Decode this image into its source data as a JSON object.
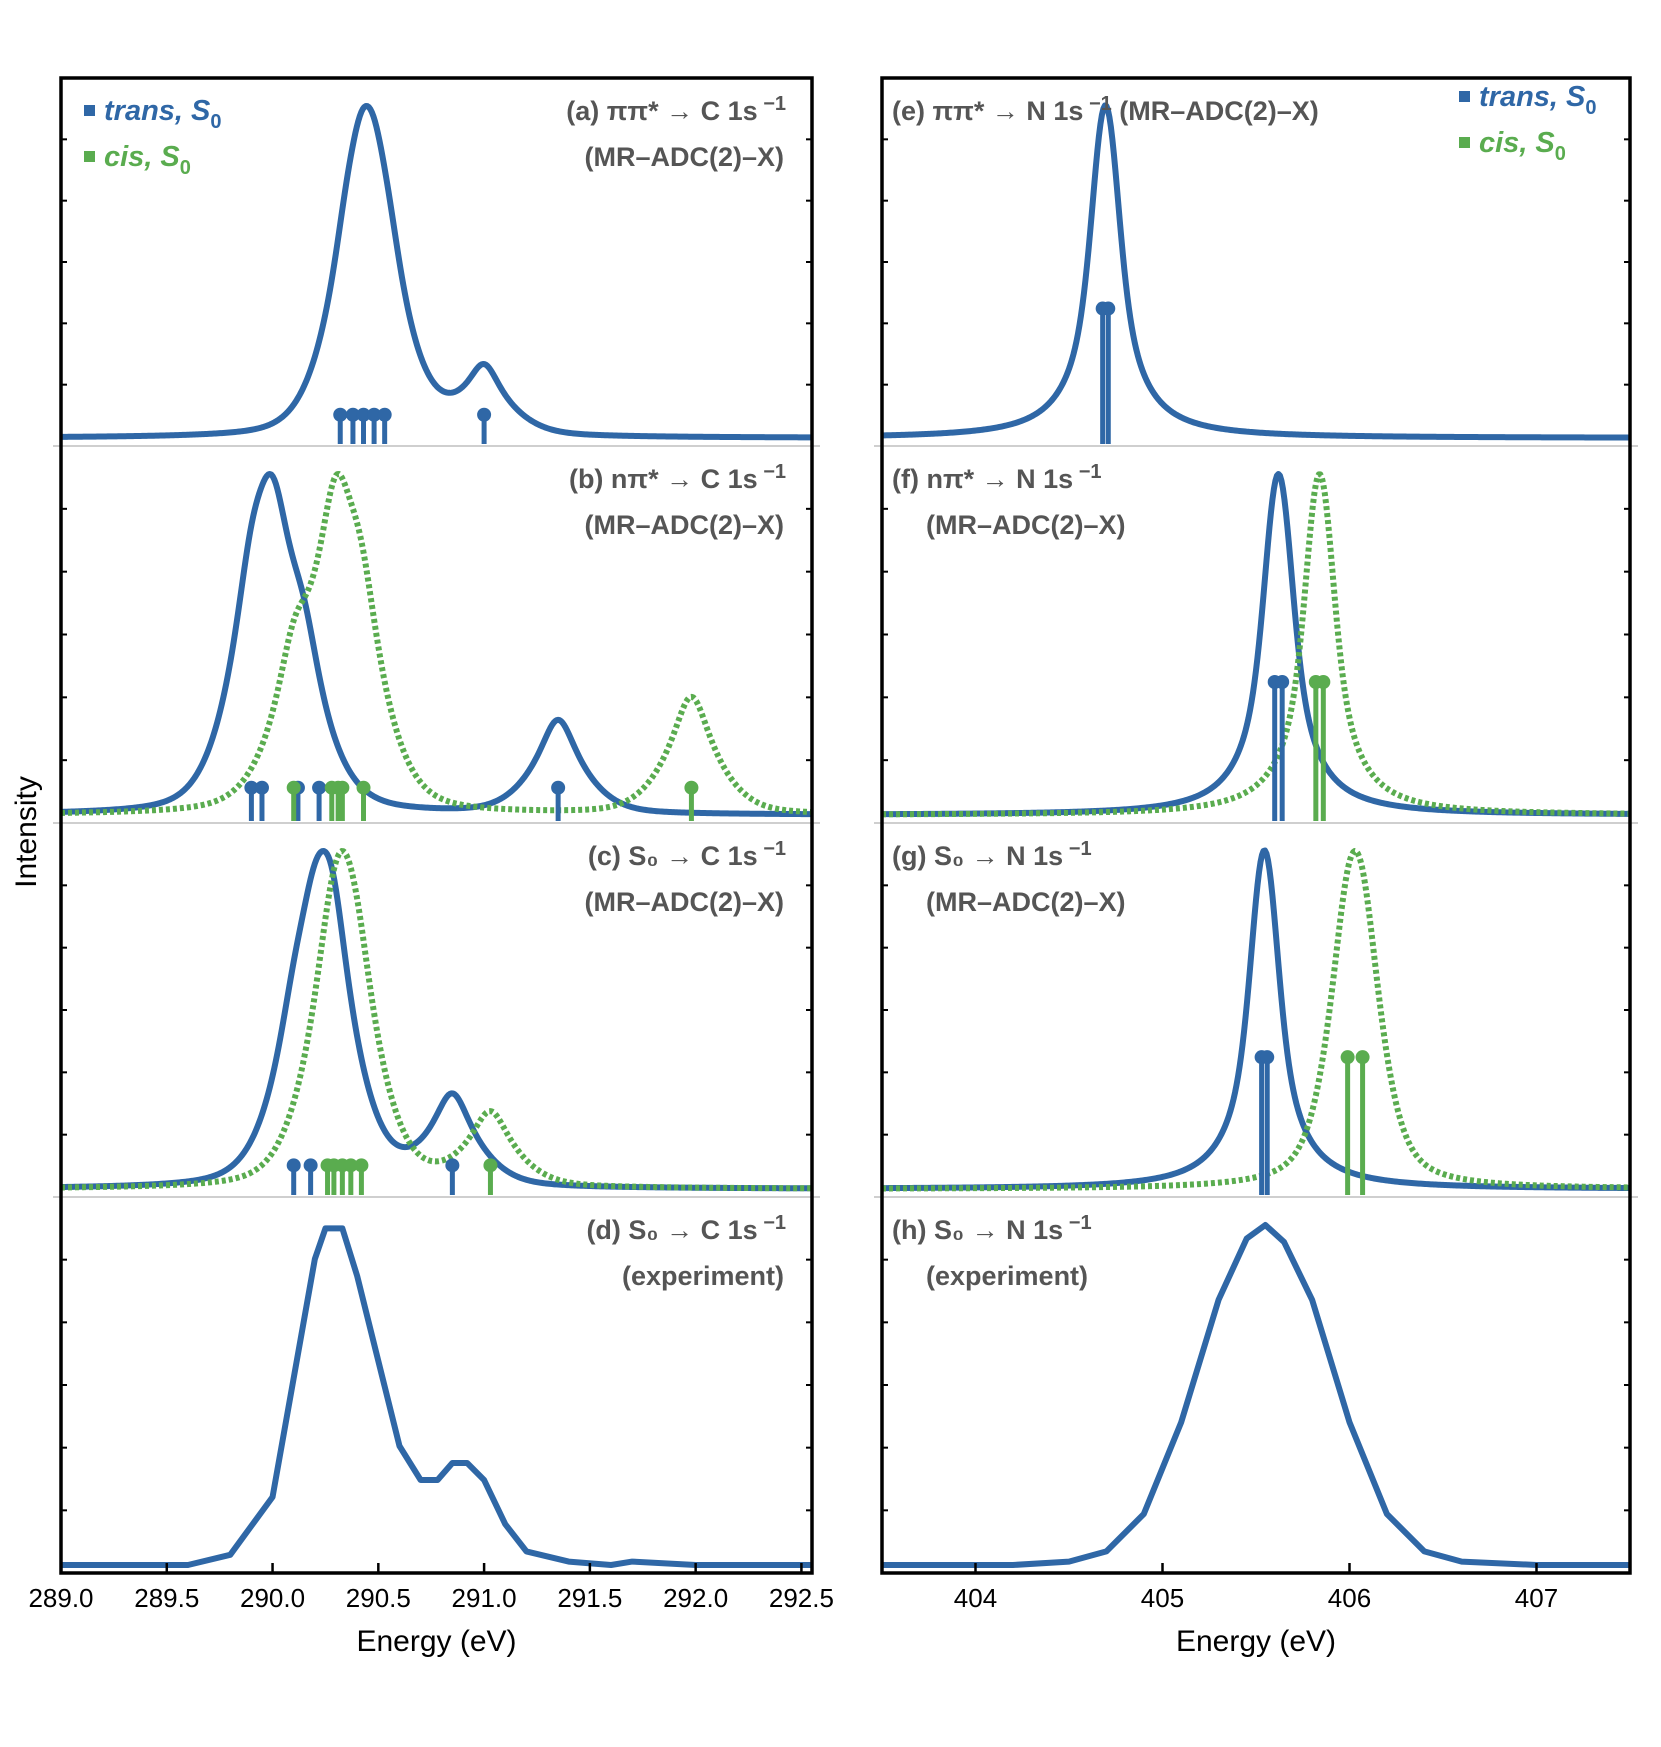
{
  "colors": {
    "trans": "#2f67a6",
    "cis": "#5aac4f",
    "title": "#555555"
  },
  "chart_data": {
    "type": "line",
    "ylabel": "Intensity",
    "legend": [
      {
        "key": "trans",
        "label_main": "trans, S",
        "label_sub": "0",
        "color": "#2f67a6",
        "placement": "top-left of C 1s column, top-right of N 1s column"
      },
      {
        "key": "cis",
        "label_main": "cis, S",
        "label_sub": "0",
        "color": "#5aac4f"
      }
    ],
    "columns": [
      {
        "key": "carbon",
        "xlabel": "Energy (eV)",
        "xlim": [
          289.0,
          292.55
        ],
        "xticks": [
          289.0,
          289.5,
          290.0,
          290.5,
          291.0,
          291.5,
          292.0,
          292.5
        ],
        "xtick_labels": [
          "289.0",
          "289.5",
          "290.0",
          "290.5",
          "291.0",
          "291.5",
          "292.0",
          "292.5"
        ],
        "legend_corner": "top-left",
        "panels": [
          {
            "label": "(a)",
            "title_line1_pre": "ππ* → C 1s",
            "title_sup": "−1",
            "title_line2": "(MR–ADC(2)–X)",
            "title_align": "right",
            "series": [
              {
                "name": "trans, S0",
                "style": "solid",
                "color": "#2f67a6",
                "peaks": [
                  [
                    290.35,
                    0.6
                  ],
                  [
                    290.42,
                    1.0
                  ],
                  [
                    290.48,
                    0.9
                  ],
                  [
                    290.55,
                    0.5
                  ],
                  [
                    291.0,
                    0.48
                  ]
                ],
                "gamma": 0.09,
                "sigma": 0.05
              }
            ],
            "sticks": [
              {
                "series": "trans",
                "positions": [
                  290.32,
                  290.38,
                  290.43,
                  290.48,
                  290.53,
                  291.0
                ],
                "heights": [
                  0.07,
                  0.07,
                  0.07,
                  0.07,
                  0.07,
                  0.07
                ]
              }
            ]
          },
          {
            "label": "(b)",
            "title_line1_pre": "nπ* → C 1s",
            "title_sup": "−1",
            "title_line2": "(MR–ADC(2)–X)",
            "title_align": "right",
            "series": [
              {
                "name": "trans, S0",
                "style": "solid",
                "color": "#2f67a6",
                "peaks": [
                  [
                    289.9,
                    0.7
                  ],
                  [
                    290.0,
                    1.0
                  ],
                  [
                    290.15,
                    0.5
                  ],
                  [
                    291.35,
                    0.45
                  ]
                ],
                "gamma": 0.1,
                "sigma": 0.05
              },
              {
                "name": "cis, S0",
                "style": "dotted",
                "color": "#5aac4f",
                "peaks": [
                  [
                    290.1,
                    0.5
                  ],
                  [
                    290.3,
                    1.0
                  ],
                  [
                    290.42,
                    0.6
                  ],
                  [
                    291.98,
                    0.5
                  ]
                ],
                "gamma": 0.1,
                "sigma": 0.05
              }
            ],
            "sticks": [
              {
                "series": "trans",
                "positions": [
                  289.9,
                  289.95,
                  290.12,
                  290.22,
                  291.35
                ],
                "heights": [
                  0.08,
                  0.08,
                  0.08,
                  0.08,
                  0.08
                ]
              },
              {
                "series": "cis",
                "positions": [
                  290.1,
                  290.28,
                  290.31,
                  290.33,
                  290.43,
                  291.98
                ],
                "heights": [
                  0.08,
                  0.08,
                  0.08,
                  0.08,
                  0.08,
                  0.08
                ]
              }
            ]
          },
          {
            "label": "(c)",
            "title_line1_pre": "S₀ → C 1s",
            "title_sup": "−1",
            "title_line2": "(MR–ADC(2)–X)",
            "title_align": "right",
            "series": [
              {
                "name": "trans, S0",
                "style": "solid",
                "color": "#2f67a6",
                "peaks": [
                  [
                    290.1,
                    0.4
                  ],
                  [
                    290.2,
                    0.7
                  ],
                  [
                    290.28,
                    1.0
                  ],
                  [
                    290.85,
                    0.45
                  ]
                ],
                "gamma": 0.1,
                "sigma": 0.05
              },
              {
                "name": "cis, S0",
                "style": "dotted",
                "color": "#5aac4f",
                "peaks": [
                  [
                    290.27,
                    0.7
                  ],
                  [
                    290.33,
                    1.0
                  ],
                  [
                    290.4,
                    0.7
                  ],
                  [
                    291.03,
                    0.45
                  ]
                ],
                "gamma": 0.1,
                "sigma": 0.05
              }
            ],
            "sticks": [
              {
                "series": "trans",
                "positions": [
                  290.1,
                  290.18,
                  290.85
                ],
                "heights": [
                  0.07,
                  0.07,
                  0.07
                ]
              },
              {
                "series": "cis",
                "positions": [
                  290.26,
                  290.29,
                  290.33,
                  290.37,
                  290.42,
                  291.03
                ],
                "heights": [
                  0.07,
                  0.07,
                  0.07,
                  0.07,
                  0.07,
                  0.07
                ]
              }
            ]
          },
          {
            "label": "(d)",
            "title_line1_pre": "S₀ → C 1s",
            "title_sup": "−1",
            "title_line2": "(experiment)",
            "title_align": "right",
            "experimental": [
              [
                289.0,
                0.0
              ],
              [
                289.6,
                0.0
              ],
              [
                289.8,
                0.03
              ],
              [
                290.0,
                0.2
              ],
              [
                290.1,
                0.55
              ],
              [
                290.2,
                0.9
              ],
              [
                290.25,
                0.99
              ],
              [
                290.33,
                0.99
              ],
              [
                290.4,
                0.85
              ],
              [
                290.5,
                0.6
              ],
              [
                290.6,
                0.35
              ],
              [
                290.7,
                0.25
              ],
              [
                290.78,
                0.25
              ],
              [
                290.85,
                0.3
              ],
              [
                290.92,
                0.3
              ],
              [
                291.0,
                0.25
              ],
              [
                291.1,
                0.12
              ],
              [
                291.2,
                0.04
              ],
              [
                291.4,
                0.01
              ],
              [
                291.6,
                0.0
              ],
              [
                291.7,
                0.01
              ],
              [
                292.0,
                0.0
              ],
              [
                292.55,
                0.0
              ]
            ]
          }
        ]
      },
      {
        "key": "nitrogen",
        "xlabel": "Energy (eV)",
        "xlim": [
          403.5,
          407.5
        ],
        "xticks": [
          404,
          405,
          406,
          407
        ],
        "xtick_labels": [
          "404",
          "405",
          "406",
          "407"
        ],
        "legend_corner": "top-right",
        "panels": [
          {
            "label": "(e)",
            "title_line1_pre": "ππ* → N 1s",
            "title_sup": "−1",
            "title_line2": "",
            "title_suffix": "(MR–ADC(2)–X)",
            "title_align": "left",
            "series": [
              {
                "name": "trans, S0",
                "style": "solid",
                "color": "#2f67a6",
                "peaks": [
                  [
                    404.68,
                    1.0
                  ],
                  [
                    404.71,
                    1.0
                  ]
                ],
                "gamma": 0.13,
                "sigma": 0.02
              }
            ],
            "sticks": [
              {
                "series": "trans",
                "positions": [
                  404.68,
                  404.71
                ],
                "heights": [
                  0.39,
                  0.39
                ]
              }
            ]
          },
          {
            "label": "(f)",
            "title_line1_pre": "nπ* → N 1s",
            "title_sup": "−1",
            "title_line2": "(MR–ADC(2)–X)",
            "title_align": "left",
            "series": [
              {
                "name": "trans, S0",
                "style": "solid",
                "color": "#2f67a6",
                "peaks": [
                  [
                    405.6,
                    1.0
                  ],
                  [
                    405.64,
                    1.0
                  ]
                ],
                "gamma": 0.13,
                "sigma": 0.02
              },
              {
                "name": "cis, S0",
                "style": "dotted",
                "color": "#5aac4f",
                "peaks": [
                  [
                    405.82,
                    1.0
                  ],
                  [
                    405.86,
                    1.0
                  ]
                ],
                "gamma": 0.13,
                "sigma": 0.02
              }
            ],
            "sticks": [
              {
                "series": "trans",
                "positions": [
                  405.6,
                  405.64
                ],
                "heights": [
                  0.39,
                  0.39
                ]
              },
              {
                "series": "cis",
                "positions": [
                  405.82,
                  405.86
                ],
                "heights": [
                  0.39,
                  0.39
                ]
              }
            ]
          },
          {
            "label": "(g)",
            "title_line1_pre": "S₀ → N 1s",
            "title_sup": "−1",
            "title_line2": "(MR–ADC(2)–X)",
            "title_align": "left",
            "series": [
              {
                "name": "trans, S0",
                "style": "solid",
                "color": "#2f67a6",
                "peaks": [
                  [
                    405.53,
                    1.0
                  ],
                  [
                    405.56,
                    1.0
                  ]
                ],
                "gamma": 0.13,
                "sigma": 0.02
              },
              {
                "name": "cis, S0",
                "style": "dotted",
                "color": "#5aac4f",
                "peaks": [
                  [
                    405.99,
                    1.0
                  ],
                  [
                    406.07,
                    1.0
                  ]
                ],
                "gamma": 0.12,
                "sigma": 0.04
              }
            ],
            "sticks": [
              {
                "series": "trans",
                "positions": [
                  405.53,
                  405.56
                ],
                "heights": [
                  0.39,
                  0.39
                ]
              },
              {
                "series": "cis",
                "positions": [
                  405.99,
                  406.07
                ],
                "heights": [
                  0.39,
                  0.39
                ]
              }
            ]
          },
          {
            "label": "(h)",
            "title_line1_pre": "S₀ → N 1s",
            "title_sup": "−1",
            "title_line2": "(experiment)",
            "title_align": "left",
            "experimental": [
              [
                403.5,
                0.0
              ],
              [
                404.2,
                0.0
              ],
              [
                404.5,
                0.01
              ],
              [
                404.7,
                0.04
              ],
              [
                404.9,
                0.15
              ],
              [
                405.1,
                0.42
              ],
              [
                405.3,
                0.78
              ],
              [
                405.45,
                0.96
              ],
              [
                405.55,
                1.0
              ],
              [
                405.65,
                0.95
              ],
              [
                405.8,
                0.78
              ],
              [
                406.0,
                0.42
              ],
              [
                406.2,
                0.15
              ],
              [
                406.4,
                0.04
              ],
              [
                406.6,
                0.01
              ],
              [
                407.0,
                0.0
              ],
              [
                407.5,
                0.0
              ]
            ]
          }
        ]
      }
    ]
  }
}
